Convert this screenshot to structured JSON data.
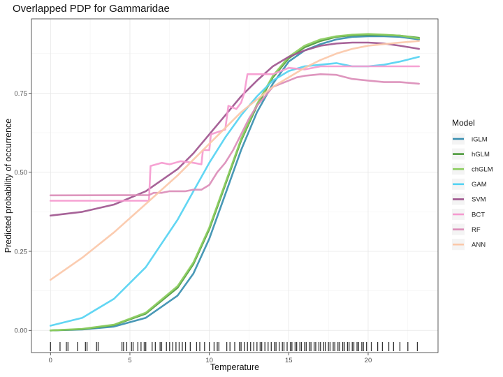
{
  "chart_data": {
    "type": "line",
    "title": "Overlapped PDP for Gammaridae",
    "xlabel": "Temperature",
    "ylabel": "Predicted probability of occurrence",
    "xlim": [
      -1.2,
      24.4
    ],
    "ylim": [
      -0.07,
      0.985
    ],
    "x_ticks": [
      0,
      5,
      10,
      15,
      20
    ],
    "x_tick_labels": [
      "0",
      "5",
      "10",
      "15",
      "20"
    ],
    "y_ticks": [
      0,
      0.25,
      0.5,
      0.75
    ],
    "y_tick_labels": [
      "0.00",
      "0.25",
      "0.50",
      "0.75"
    ],
    "grid": true,
    "legend": {
      "title": "Model",
      "position": "right"
    },
    "series": [
      {
        "name": "iGLM",
        "color": "#3a8fb0",
        "points": [
          [
            0,
            0.0
          ],
          [
            2,
            0.003
          ],
          [
            4,
            0.012
          ],
          [
            6,
            0.04
          ],
          [
            8,
            0.11
          ],
          [
            9,
            0.18
          ],
          [
            10,
            0.29
          ],
          [
            11,
            0.43
          ],
          [
            12,
            0.57
          ],
          [
            13,
            0.69
          ],
          [
            14,
            0.78
          ],
          [
            15,
            0.85
          ],
          [
            16,
            0.885
          ],
          [
            17,
            0.905
          ],
          [
            18,
            0.92
          ],
          [
            19,
            0.928
          ],
          [
            20,
            0.93
          ],
          [
            21,
            0.93
          ],
          [
            22,
            0.928
          ],
          [
            23.2,
            0.92
          ]
        ]
      },
      {
        "name": "hGLM",
        "color": "#4d9a3c",
        "points": [
          [
            0,
            0.0
          ],
          [
            2,
            0.004
          ],
          [
            4,
            0.017
          ],
          [
            6,
            0.053
          ],
          [
            8,
            0.135
          ],
          [
            9,
            0.21
          ],
          [
            10,
            0.32
          ],
          [
            11,
            0.46
          ],
          [
            12,
            0.6
          ],
          [
            13,
            0.71
          ],
          [
            14,
            0.8
          ],
          [
            15,
            0.86
          ],
          [
            16,
            0.895
          ],
          [
            17,
            0.915
          ],
          [
            18,
            0.928
          ],
          [
            19,
            0.933
          ],
          [
            20,
            0.935
          ],
          [
            21,
            0.934
          ],
          [
            22,
            0.932
          ],
          [
            23.2,
            0.925
          ]
        ]
      },
      {
        "name": "chGLM",
        "color": "#8ccd5f",
        "points": [
          [
            0,
            0.0
          ],
          [
            2,
            0.005
          ],
          [
            4,
            0.018
          ],
          [
            6,
            0.056
          ],
          [
            8,
            0.14
          ],
          [
            9,
            0.215
          ],
          [
            10,
            0.325
          ],
          [
            11,
            0.465
          ],
          [
            12,
            0.605
          ],
          [
            13,
            0.715
          ],
          [
            14,
            0.805
          ],
          [
            15,
            0.865
          ],
          [
            16,
            0.9
          ],
          [
            17,
            0.92
          ],
          [
            18,
            0.93
          ],
          [
            19,
            0.935
          ],
          [
            20,
            0.937
          ],
          [
            21,
            0.935
          ],
          [
            22,
            0.932
          ],
          [
            23.2,
            0.923
          ]
        ]
      },
      {
        "name": "GAM",
        "color": "#55d2f2",
        "points": [
          [
            0,
            0.015
          ],
          [
            2,
            0.04
          ],
          [
            4,
            0.1
          ],
          [
            6,
            0.2
          ],
          [
            8,
            0.35
          ],
          [
            9,
            0.44
          ],
          [
            10,
            0.53
          ],
          [
            11,
            0.61
          ],
          [
            12,
            0.68
          ],
          [
            13,
            0.74
          ],
          [
            14,
            0.79
          ],
          [
            15,
            0.82
          ],
          [
            16,
            0.835
          ],
          [
            17,
            0.84
          ],
          [
            18,
            0.845
          ],
          [
            19,
            0.835
          ],
          [
            20,
            0.835
          ],
          [
            21,
            0.84
          ],
          [
            22,
            0.85
          ],
          [
            23.2,
            0.865
          ]
        ]
      },
      {
        "name": "SVM",
        "color": "#a0568f",
        "points": [
          [
            0,
            0.363
          ],
          [
            2,
            0.375
          ],
          [
            4,
            0.398
          ],
          [
            6,
            0.44
          ],
          [
            8,
            0.51
          ],
          [
            9,
            0.56
          ],
          [
            10,
            0.62
          ],
          [
            11,
            0.68
          ],
          [
            12,
            0.74
          ],
          [
            13,
            0.79
          ],
          [
            14,
            0.835
          ],
          [
            15,
            0.865
          ],
          [
            16,
            0.885
          ],
          [
            17,
            0.9
          ],
          [
            18,
            0.907
          ],
          [
            19,
            0.91
          ],
          [
            20,
            0.91
          ],
          [
            21,
            0.907
          ],
          [
            22,
            0.9
          ],
          [
            23.2,
            0.89
          ]
        ]
      },
      {
        "name": "BCT",
        "color": "#f59acf",
        "points": [
          [
            0,
            0.41
          ],
          [
            6.2,
            0.41
          ],
          [
            6.3,
            0.52
          ],
          [
            7,
            0.53
          ],
          [
            7.5,
            0.525
          ],
          [
            8.2,
            0.535
          ],
          [
            9,
            0.53
          ],
          [
            9.5,
            0.525
          ],
          [
            9.6,
            0.57
          ],
          [
            10,
            0.57
          ],
          [
            10.1,
            0.62
          ],
          [
            11,
            0.635
          ],
          [
            11.2,
            0.71
          ],
          [
            11.7,
            0.7
          ],
          [
            12,
            0.72
          ],
          [
            12.2,
            0.75
          ],
          [
            12.4,
            0.81
          ],
          [
            14,
            0.81
          ],
          [
            14.5,
            0.82
          ],
          [
            15,
            0.83
          ],
          [
            16,
            0.825
          ],
          [
            17,
            0.835
          ],
          [
            23.2,
            0.835
          ]
        ]
      },
      {
        "name": "RF",
        "color": "#db8db8",
        "points": [
          [
            0,
            0.427
          ],
          [
            6.2,
            0.428
          ],
          [
            6.5,
            0.435
          ],
          [
            7,
            0.435
          ],
          [
            7.5,
            0.44
          ],
          [
            8,
            0.44
          ],
          [
            8.5,
            0.44
          ],
          [
            9,
            0.445
          ],
          [
            9.5,
            0.445
          ],
          [
            10,
            0.46
          ],
          [
            10.5,
            0.5
          ],
          [
            11,
            0.53
          ],
          [
            11.5,
            0.57
          ],
          [
            12,
            0.62
          ],
          [
            12.5,
            0.67
          ],
          [
            13,
            0.71
          ],
          [
            14,
            0.77
          ],
          [
            15,
            0.79
          ],
          [
            15.5,
            0.8
          ],
          [
            16,
            0.805
          ],
          [
            17,
            0.81
          ],
          [
            18,
            0.808
          ],
          [
            19,
            0.795
          ],
          [
            20,
            0.79
          ],
          [
            21,
            0.785
          ],
          [
            22,
            0.785
          ],
          [
            23.2,
            0.78
          ]
        ]
      },
      {
        "name": "ANN",
        "color": "#fbc8a9",
        "points": [
          [
            0,
            0.16
          ],
          [
            2,
            0.23
          ],
          [
            4,
            0.31
          ],
          [
            6,
            0.4
          ],
          [
            8,
            0.49
          ],
          [
            9,
            0.54
          ],
          [
            10,
            0.59
          ],
          [
            11,
            0.64
          ],
          [
            12,
            0.69
          ],
          [
            13,
            0.73
          ],
          [
            14,
            0.77
          ],
          [
            15,
            0.8
          ],
          [
            16,
            0.83
          ],
          [
            17,
            0.855
          ],
          [
            18,
            0.875
          ],
          [
            19,
            0.89
          ],
          [
            20,
            0.9
          ],
          [
            21,
            0.905
          ],
          [
            22,
            0.91
          ],
          [
            23.2,
            0.915
          ]
        ]
      }
    ],
    "rug_x": [
      0,
      0.6,
      1,
      1.1,
      1.7,
      2.2,
      2.3,
      2.9,
      3,
      4.5,
      4.6,
      4.8,
      5.1,
      5.2,
      5.5,
      5.7,
      5.9,
      6,
      6.4,
      6.6,
      6.9,
      7,
      7.3,
      7.5,
      7.7,
      7.9,
      8.1,
      8.3,
      8.5,
      8.8,
      9.2,
      9.4,
      9.7,
      10,
      10.3,
      10.5,
      10.6,
      11.1,
      11.3,
      11.6,
      11.9,
      12,
      12.2,
      12.4,
      12.6,
      12.8,
      13,
      13.2,
      13.3,
      13.5,
      13.7,
      13.9,
      14.1,
      14.2,
      14.4,
      14.6,
      14.7,
      14.9,
      15.1,
      15.2,
      15.4,
      15.5,
      15.7,
      15.8,
      16,
      16.1,
      16.3,
      16.4,
      16.6,
      16.7,
      16.9,
      17,
      17.2,
      17.3,
      17.5,
      17.6,
      17.8,
      17.9,
      18.1,
      18.2,
      18.4,
      18.5,
      18.7,
      18.8,
      19,
      19.1,
      19.3,
      19.4,
      19.6,
      19.7,
      19.9,
      20.2,
      20.6,
      20.9,
      21.3,
      21.6,
      22,
      22.5,
      23.1
    ]
  }
}
